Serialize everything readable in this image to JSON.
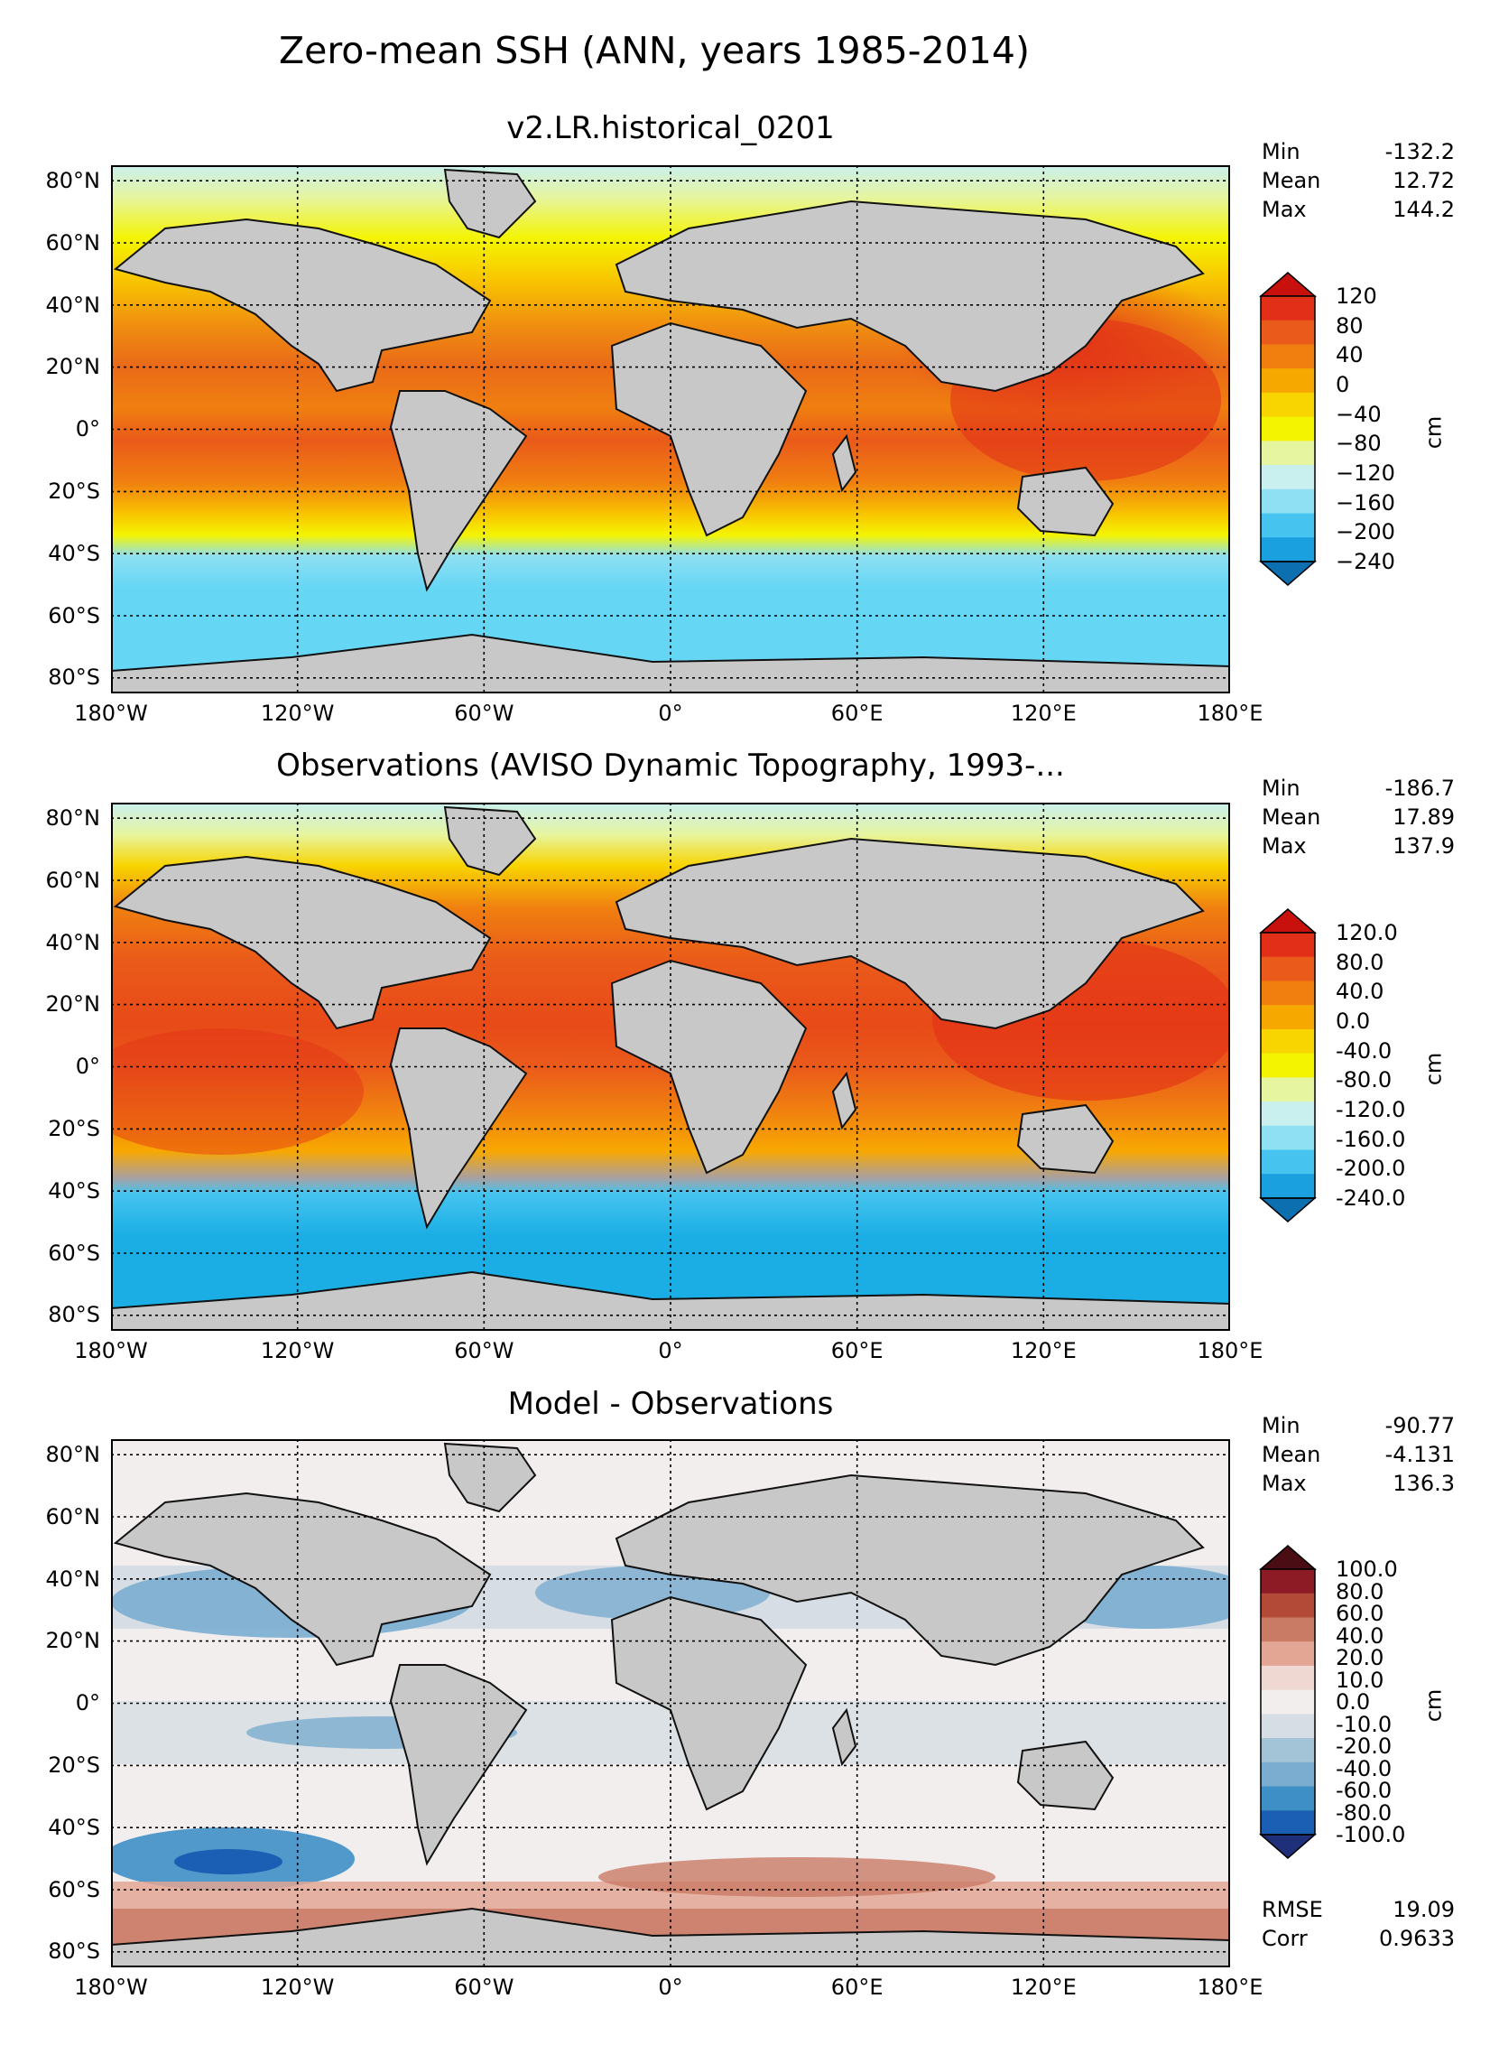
{
  "title": "Zero-mean SSH (ANN, years 1985-2014)",
  "colors": {
    "land": "#c8c8c8",
    "ssh_scale": [
      "#0b6fb0",
      "#1a9fdf",
      "#46c4ef",
      "#8ee0f2",
      "#c9f0ef",
      "#e6f5a0",
      "#f4f400",
      "#f8d400",
      "#f7a800",
      "#f07f10",
      "#ea5a1a",
      "#e23018",
      "#c8100c"
    ],
    "diff_scale": [
      "#1f2f7a",
      "#1a5fb4",
      "#3e8fc5",
      "#7aadd0",
      "#a3c4d6",
      "#d6dde4",
      "#f2eeee",
      "#f0d8d2",
      "#e3a694",
      "#c97b66",
      "#b34a38",
      "#8c1b26",
      "#4a0d14"
    ]
  },
  "x_ticks": [
    "180°W",
    "120°W",
    "60°W",
    "0°",
    "60°E",
    "120°E",
    "180°E"
  ],
  "y_ticks": [
    "80°N",
    "60°N",
    "40°N",
    "20°N",
    "0°",
    "20°S",
    "40°S",
    "60°S",
    "80°S"
  ],
  "panels": [
    {
      "title": "v2.LR.historical_0201",
      "stats": {
        "min_label": "Min",
        "min": "-132.2",
        "mean_label": "Mean",
        "mean": "12.72",
        "max_label": "Max",
        "max": "144.2"
      },
      "colorbar": {
        "unit": "cm",
        "labels": [
          "120",
          "80",
          "40",
          "0",
          "−40",
          "−80",
          "−120",
          "−160",
          "−200",
          "−240"
        ]
      }
    },
    {
      "title": "Observations (AVISO Dynamic Topography, 1993-...",
      "stats": {
        "min_label": "Min",
        "min": "-186.7",
        "mean_label": "Mean",
        "mean": "17.89",
        "max_label": "Max",
        "max": "137.9"
      },
      "colorbar": {
        "unit": "cm",
        "labels": [
          "120.0",
          "80.0",
          "40.0",
          "0.0",
          "-40.0",
          "-80.0",
          "-120.0",
          "-160.0",
          "-200.0",
          "-240.0"
        ]
      }
    },
    {
      "title": "Model - Observations",
      "stats": {
        "min_label": "Min",
        "min": "-90.77",
        "mean_label": "Mean",
        "mean": "-4.131",
        "max_label": "Max",
        "max": "136.3"
      },
      "colorbar": {
        "unit": "cm",
        "labels": [
          "100.0",
          "80.0",
          "60.0",
          "40.0",
          "20.0",
          "10.0",
          "0.0",
          "-10.0",
          "-20.0",
          "-40.0",
          "-60.0",
          "-80.0",
          "-100.0"
        ]
      },
      "metrics": {
        "rmse_label": "RMSE",
        "rmse": "19.09",
        "corr_label": "Corr",
        "corr": "0.9633"
      }
    }
  ],
  "chart_data": {
    "type": "heatmap",
    "projection": "equirectangular",
    "x_range_deg": [
      -180,
      180
    ],
    "y_range_deg": [
      -85,
      85
    ],
    "variable": "Zero-mean SSH",
    "unit": "cm",
    "grid": true,
    "panels": [
      {
        "name": "v2.LR.historical_0201",
        "min": -132.2,
        "mean": 12.72,
        "max": 144.2,
        "color_levels": [
          -240,
          -200,
          -160,
          -120,
          -80,
          -40,
          0,
          40,
          80,
          120
        ]
      },
      {
        "name": "Observations (AVISO Dynamic Topography, 1993-...",
        "min": -186.7,
        "mean": 17.89,
        "max": 137.9,
        "color_levels": [
          -240,
          -200,
          -160,
          -120,
          -80,
          -40,
          0,
          40,
          80,
          120
        ]
      },
      {
        "name": "Model - Observations",
        "min": -90.77,
        "mean": -4.131,
        "max": 136.3,
        "rmse": 19.09,
        "corr": 0.9633,
        "color_levels": [
          -100,
          -80,
          -60,
          -40,
          -20,
          -10,
          0,
          10,
          20,
          40,
          60,
          80,
          100
        ]
      }
    ]
  }
}
